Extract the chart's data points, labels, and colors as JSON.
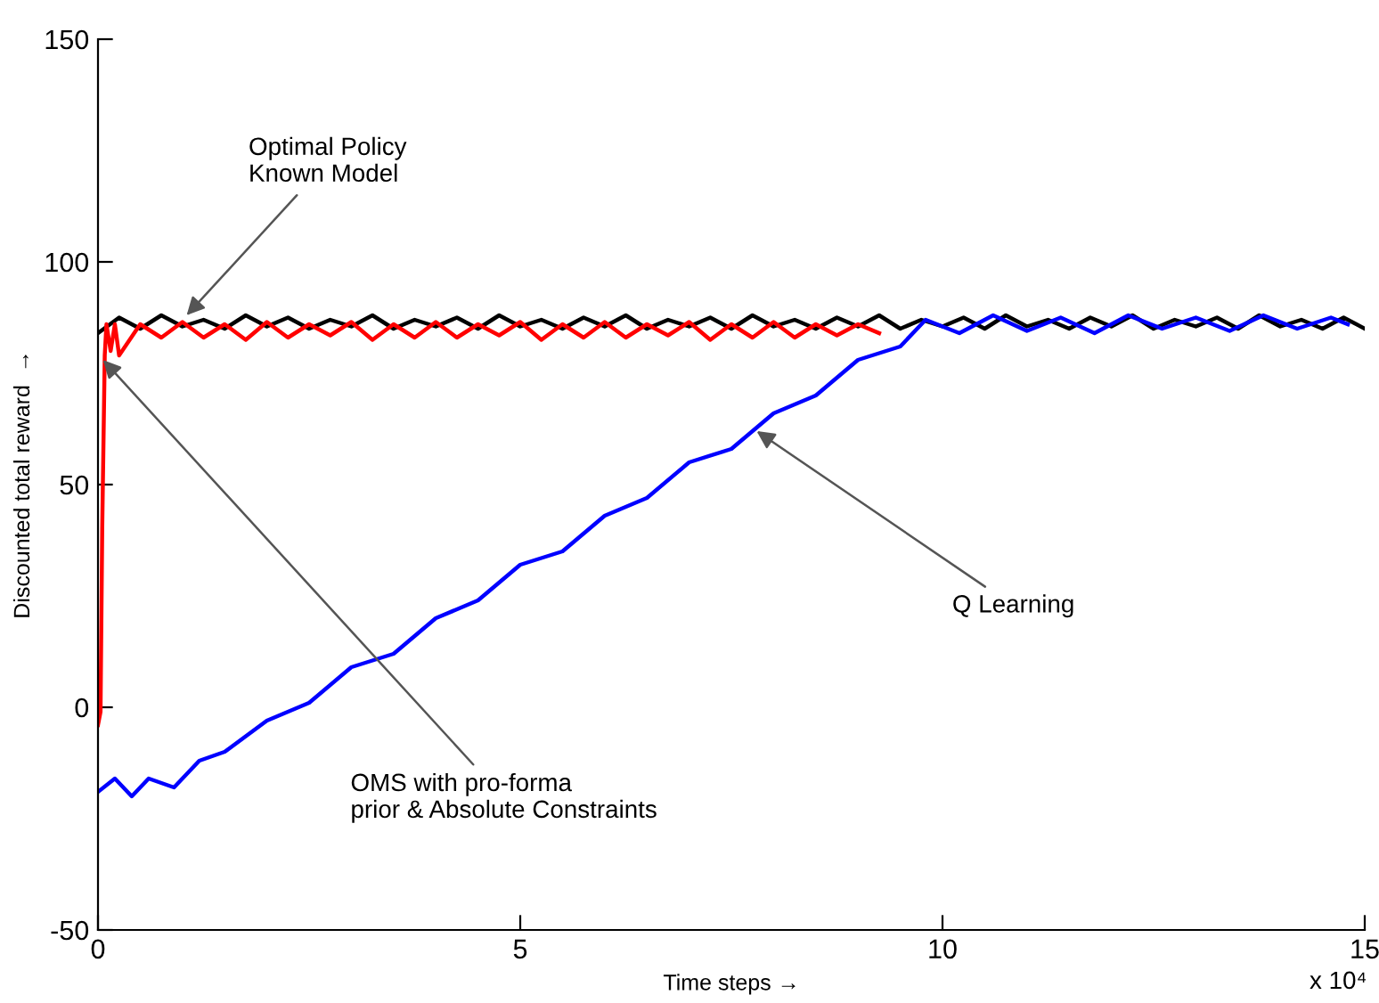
{
  "chart_data": {
    "type": "line",
    "xlabel": "Time steps →",
    "ylabel": "Discounted total reward  →",
    "xlim": [
      0,
      15
    ],
    "xticks": [
      0,
      5,
      10,
      15
    ],
    "ylim": [
      -50,
      150
    ],
    "yticks": [
      -50,
      0,
      50,
      100,
      150
    ],
    "grid": false,
    "legend": false,
    "marker": "none",
    "line_style": "solid",
    "series": [
      {
        "color": "#000000",
        "x": [
          0,
          0.25,
          0.5,
          0.75,
          1,
          1.25,
          1.5,
          1.75,
          2,
          2.25,
          2.5,
          2.75,
          3,
          3.25,
          3.5,
          3.75,
          4,
          4.25,
          4.5,
          4.75,
          5,
          5.25,
          5.5,
          5.75,
          6,
          6.25,
          6.5,
          6.75,
          7,
          7.25,
          7.5,
          7.75,
          8,
          8.25,
          8.5,
          8.75,
          9,
          9.25,
          9.5,
          9.75,
          10,
          10.25,
          10.5,
          10.75,
          11,
          11.25,
          11.5,
          11.75,
          12,
          12.25,
          12.5,
          12.75,
          13,
          13.25,
          13.5,
          13.75,
          14,
          14.25,
          14.5,
          14.75,
          15
        ],
        "values": [
          84,
          87.5,
          85,
          88,
          85.5,
          87,
          85,
          88,
          85.5,
          87.5,
          85,
          87,
          85.5,
          88,
          85,
          87,
          85.5,
          87.5,
          85,
          88,
          85.5,
          87,
          85,
          87.5,
          85.5,
          88,
          85,
          87,
          85.5,
          87.5,
          85,
          88,
          85.5,
          87,
          85,
          87.5,
          85.5,
          88,
          85,
          87,
          85.5,
          87.5,
          85,
          88,
          85.5,
          87,
          85,
          87.5,
          85.5,
          88,
          85,
          87,
          85.5,
          87.5,
          85,
          88,
          85.5,
          87,
          85,
          87.5,
          85
        ]
      },
      {
        "color": "#ff0000",
        "x": [
          0,
          0.03,
          0.05,
          0.08,
          0.1,
          0.15,
          0.2,
          0.25,
          0.5,
          0.75,
          1,
          1.25,
          1.5,
          1.75,
          2,
          2.25,
          2.5,
          2.75,
          3,
          3.25,
          3.5,
          3.75,
          4,
          4.25,
          4.5,
          4.75,
          5,
          5.25,
          5.5,
          5.75,
          6,
          6.25,
          6.5,
          6.75,
          7,
          7.25,
          7.5,
          7.75,
          8,
          8.25,
          8.5,
          8.75,
          9,
          9.25
        ],
        "values": [
          -4,
          -1,
          40,
          79,
          86,
          80,
          86,
          79,
          86,
          83,
          86.5,
          83,
          86,
          82.5,
          86.5,
          83,
          86,
          83.5,
          86.5,
          82.5,
          86,
          83,
          86.5,
          83,
          86,
          83.5,
          86.5,
          82.5,
          86,
          83,
          86.5,
          83,
          86,
          83.5,
          86.5,
          82.5,
          86,
          83,
          86.5,
          83,
          86,
          83.5,
          86,
          84
        ]
      },
      {
        "color": "#0000ff",
        "x": [
          0,
          0.2,
          0.4,
          0.6,
          0.9,
          1.2,
          1.5,
          2,
          2.5,
          3,
          3.5,
          4,
          4.5,
          5,
          5.5,
          6,
          6.5,
          7,
          7.5,
          8,
          8.5,
          9,
          9.5,
          9.8,
          10.2,
          10.6,
          11,
          11.4,
          11.8,
          12.2,
          12.6,
          13,
          13.4,
          13.8,
          14.2,
          14.6,
          14.8
        ],
        "values": [
          -19,
          -16,
          -20,
          -16,
          -18,
          -12,
          -10,
          -3,
          1,
          9,
          12,
          20,
          24,
          32,
          35,
          43,
          47,
          55,
          58,
          66,
          70,
          78,
          81,
          87,
          84,
          88,
          84.5,
          87.5,
          84,
          88,
          85,
          87.5,
          84.5,
          88,
          85,
          87.5,
          86
        ]
      }
    ],
    "annotations": [
      {
        "text": "Optimal Policy\nKnown Model",
        "x": 1.05,
        "y": 88
      },
      {
        "text": "OMS with pro-forma\nprior & Absolute Constraints",
        "x": 0.06,
        "y": 78
      },
      {
        "text": "Q Learning",
        "x": 7.8,
        "y": 62
      },
      "x 10⁴"
    ]
  }
}
